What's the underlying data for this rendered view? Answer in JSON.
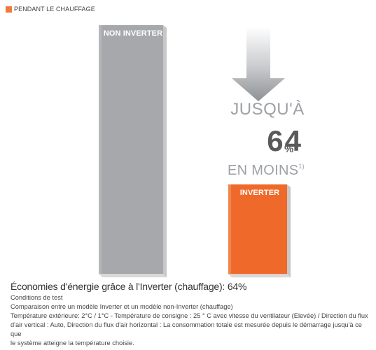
{
  "legend": {
    "label": "PENDANT LE CHAUFFAGE",
    "color": "#f07a3c"
  },
  "chart_data": {
    "type": "bar",
    "categories": [
      "NON INVERTER",
      "INVERTER"
    ],
    "values": [
      100,
      36
    ],
    "ylim": [
      0,
      100
    ],
    "colors": {
      "non_inverter": "#a6a8ab",
      "inverter": "#ef6a2a"
    },
    "annotation": {
      "line1": "JUSQU'À",
      "value": "64",
      "unit": "%",
      "line3": "EN MOINS",
      "footnote": "1)"
    }
  },
  "caption": {
    "title": "Économies d'énergie grâce à l'Inverter (chauffage): 64%",
    "lines": [
      "Conditions de test",
      "Comparaison entre un modèle Inverter et un modèle non-Inverter (chauffage)",
      "Température extérieure: 2°C / 1°C - Température de consigne : 25 ° C  avec vitesse du ventilateur (Elevée) / Direction du flux",
      "d'air vertical : Auto, Direction du flux d'air horizontal : La consommation totale est mesurée depuis le démarrage jusqu'à ce que",
      "le système atteigne la température choisie."
    ]
  }
}
